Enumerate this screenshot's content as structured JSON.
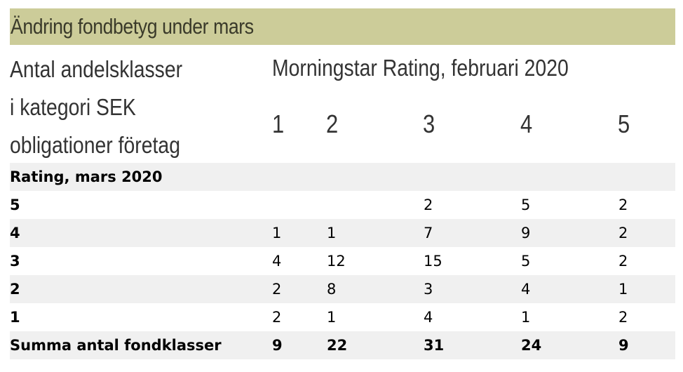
{
  "title": "Ändring fondbetyg under mars",
  "header": {
    "left_lines": [
      "Antal andelsklasser",
      "i kategori SEK",
      "obligationer företag"
    ],
    "right_title": "Morningstar Rating, februari 2020",
    "columns": [
      "1",
      "2",
      "3",
      "4",
      "5"
    ]
  },
  "section_label": "Rating, mars 2020",
  "rows": [
    {
      "label": "5",
      "cells": [
        "",
        "",
        "2",
        "5",
        "2"
      ]
    },
    {
      "label": "4",
      "cells": [
        "1",
        "1",
        "7",
        "9",
        "2"
      ]
    },
    {
      "label": "3",
      "cells": [
        "4",
        "12",
        "15",
        "5",
        "2"
      ]
    },
    {
      "label": "2",
      "cells": [
        "2",
        "8",
        "3",
        "4",
        "1"
      ]
    },
    {
      "label": "1",
      "cells": [
        "2",
        "1",
        "4",
        "1",
        "2"
      ]
    }
  ],
  "total": {
    "label": "Summa antal fondklasser",
    "cells": [
      "9",
      "22",
      "31",
      "24",
      "9"
    ]
  },
  "colors": {
    "title_bg": "#cccc99",
    "row_shade": "#f0f0f0"
  }
}
